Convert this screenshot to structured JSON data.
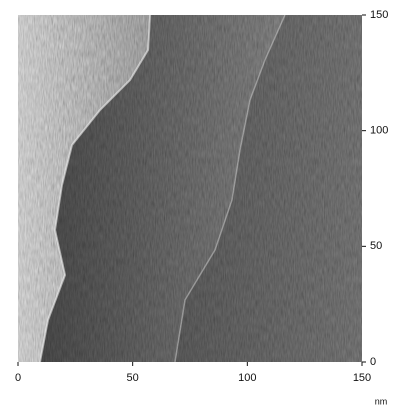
{
  "chart_data": {
    "type": "image",
    "x_label": "nm",
    "xlim": [
      0,
      150
    ],
    "ylim": [
      0,
      150
    ],
    "xticks": [
      0,
      50,
      100,
      150
    ],
    "yticks": [
      0,
      50,
      100,
      150
    ]
  }
}
